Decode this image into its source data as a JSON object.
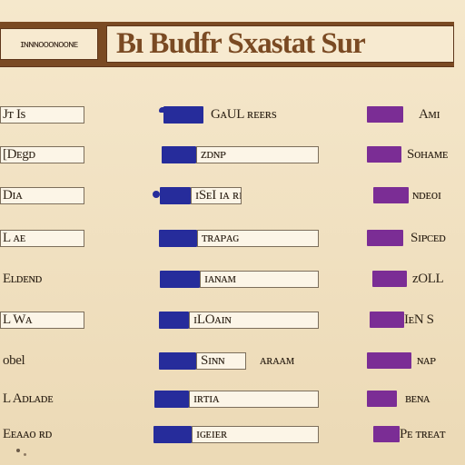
{
  "header": {
    "left_text": "ɪɴɴɴᴏᴏᴏɴᴏᴏɴᴇ",
    "title": "Bı Budfr Sxastat Sur"
  },
  "rows": [
    {
      "left": "Jᴛ Is",
      "mid_text": "GᴀUL ʀᴇᴇʀs",
      "right_text": "Aᴍɪ"
    },
    {
      "left": "[Dᴇgᴅ",
      "mid_text": "ᴢᴅɴᴘ",
      "right_text": "Sᴏʜᴀᴍᴇ"
    },
    {
      "left": "Dɪᴀ",
      "mid_text": "ɪSᴇI ɪᴀ ʀɪɴɢ",
      "right_text": "ɴᴅᴇᴏɪ"
    },
    {
      "left": "L ᴀᴇ",
      "mid_text": "ᴛʀᴀᴘᴀɢ",
      "right_text": "Sɪᴘᴄᴇᴅ"
    },
    {
      "left": "Eʟᴅᴇɴᴅ",
      "mid_text": "ɪᴀɴᴀᴍ",
      "right_text": "ᴢOLL"
    },
    {
      "left": "L Wᴀ",
      "mid_text": "ɪLOᴀɪɴ",
      "right_text": "IᴇN S"
    },
    {
      "left": "obel",
      "mid_text": "Sɪɴɴ",
      "mid_label": "ᴀʀᴀᴀᴍ",
      "right_text": "ɴᴀᴘ"
    },
    {
      "left": "L Aᴅʟᴀᴅᴇ",
      "mid_text": "ɪʀᴛɪᴀ",
      "right_text": "ʙᴇɴᴀ"
    },
    {
      "left": "Eᴇᴀᴀᴏ ʀᴅ",
      "mid_text": "ɪɢᴇɪᴇʀ",
      "right_text": "Pᴇ ᴛʀᴇᴀᴛ"
    }
  ],
  "palette": {
    "background": "#f3e2bf",
    "header": "#7a4a23",
    "blue": "#262c9b",
    "purple": "#7b2d95",
    "input_fill": "#fcf5e7"
  },
  "icons": {
    "row_marker": "blue-dot",
    "bottom_marks": "dots"
  }
}
